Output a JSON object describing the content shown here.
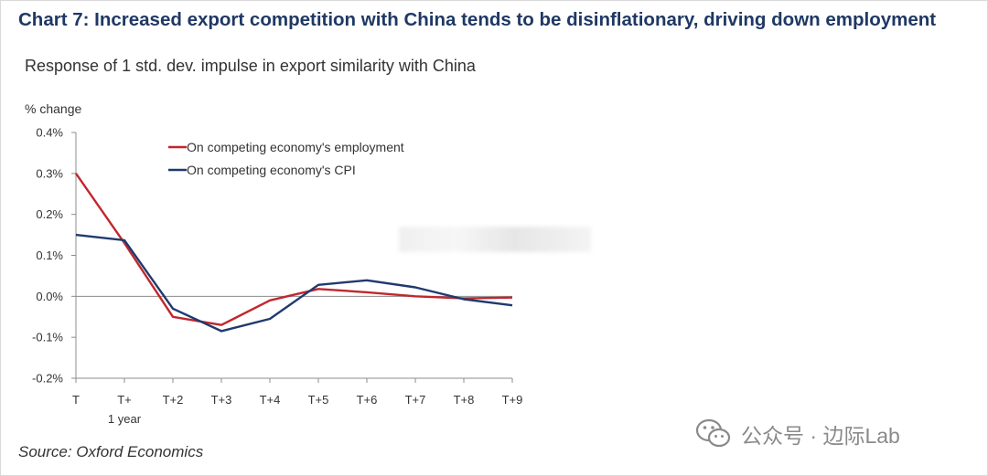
{
  "title": "Chart 7: Increased export competition with China tends to be disinflationary, driving down employment",
  "subtitle": "Response of 1 std. dev. impulse in export similarity with China",
  "unit": "% change",
  "source": "Source: Oxford Economics",
  "watermark": {
    "text": "公众号 · 边际Lab",
    "icon": "wechat-icon"
  },
  "chart_data": {
    "type": "line",
    "x": [
      "T",
      "T+1 year",
      "T+2",
      "T+3",
      "T+4",
      "T+5",
      "T+6",
      "T+7",
      "T+8",
      "T+9"
    ],
    "x_tick_labels": [
      {
        "line1": "T",
        "line2": ""
      },
      {
        "line1": "T+",
        "line2": "1 year"
      },
      {
        "line1": "T+2",
        "line2": ""
      },
      {
        "line1": "T+3",
        "line2": ""
      },
      {
        "line1": "T+4",
        "line2": ""
      },
      {
        "line1": "T+5",
        "line2": ""
      },
      {
        "line1": "T+6",
        "line2": ""
      },
      {
        "line1": "T+7",
        "line2": ""
      },
      {
        "line1": "T+8",
        "line2": ""
      },
      {
        "line1": "T+9",
        "line2": ""
      }
    ],
    "y_ticks": [
      0.4,
      0.3,
      0.2,
      0.1,
      0.0,
      -0.1,
      -0.2
    ],
    "y_tick_labels": [
      "0.4%",
      "0.3%",
      "0.2%",
      "0.1%",
      "0.0%",
      "-0.1%",
      "-0.2%"
    ],
    "ylim": [
      -0.2,
      0.4
    ],
    "ylabel": "% change",
    "legend_position": "top-left",
    "series": [
      {
        "name": "On competing economy's employment",
        "color": "#c0272d",
        "values": [
          0.3,
          0.13,
          -0.05,
          -0.07,
          -0.01,
          0.018,
          0.01,
          0.0,
          -0.005,
          -0.003
        ]
      },
      {
        "name": "On competing economy's CPI",
        "color": "#1f3a6e",
        "values": [
          0.15,
          0.137,
          -0.03,
          -0.085,
          -0.055,
          0.028,
          0.039,
          0.022,
          -0.007,
          -0.022
        ]
      }
    ]
  }
}
